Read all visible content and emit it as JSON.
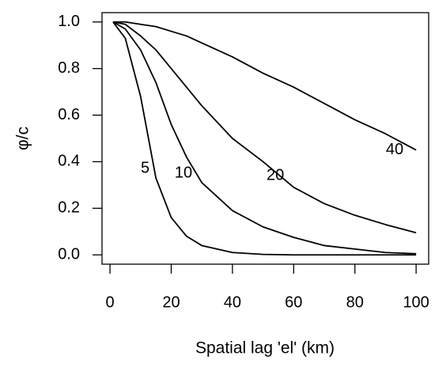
{
  "chart_data": {
    "type": "line",
    "x_label": "Spatial lag 'el'  (km)",
    "y_label": "φ/c",
    "x": [
      1,
      5,
      10,
      15,
      20,
      25,
      30,
      40,
      50,
      60,
      70,
      80,
      90,
      100
    ],
    "series": [
      {
        "name": "5",
        "color": "#000000",
        "values": [
          1,
          0.93,
          0.68,
          0.33,
          0.16,
          0.08,
          0.04,
          0.01,
          0.002,
          0,
          0,
          0,
          0,
          0
        ]
      },
      {
        "name": "10",
        "color": "#000000",
        "values": [
          1,
          0.97,
          0.88,
          0.74,
          0.56,
          0.42,
          0.31,
          0.19,
          0.12,
          0.075,
          0.04,
          0.025,
          0.01,
          0.005
        ]
      },
      {
        "name": "20",
        "color": "#000000",
        "values": [
          1,
          0.99,
          0.94,
          0.88,
          0.8,
          0.72,
          0.64,
          0.5,
          0.4,
          0.29,
          0.22,
          0.17,
          0.13,
          0.095
        ]
      },
      {
        "name": "40",
        "color": "#000000",
        "values": [
          1,
          1,
          0.99,
          0.98,
          0.96,
          0.94,
          0.91,
          0.85,
          0.78,
          0.72,
          0.65,
          0.58,
          0.52,
          0.45
        ]
      }
    ],
    "xlim": [
      -2.6,
      104.1
    ],
    "ylim": [
      -0.04,
      1.04
    ],
    "xticks": [
      0,
      20,
      40,
      60,
      80,
      100
    ],
    "yticks": [
      {
        "value": 0,
        "label": "0.0"
      },
      0.2,
      0.4,
      0.6,
      0.8,
      {
        "value": 1,
        "label": "1.0"
      }
    ]
  }
}
